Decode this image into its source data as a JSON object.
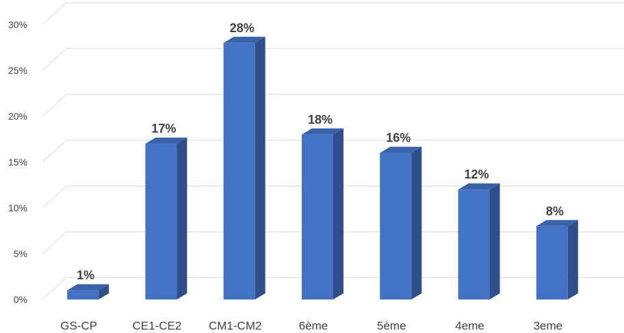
{
  "chart_data": {
    "type": "bar",
    "categories": [
      "GS-CP",
      "CE1-CE2",
      "CM1-CM2",
      "6ème",
      "5ème",
      "4eme",
      "3eme"
    ],
    "values": [
      1,
      17,
      28,
      18,
      16,
      12,
      8
    ],
    "data_labels": [
      "1%",
      "17%",
      "28%",
      "18%",
      "16%",
      "12%",
      "8%"
    ],
    "y_ticks": [
      0,
      5,
      10,
      15,
      20,
      25,
      30
    ],
    "y_tick_labels": [
      "0%",
      "5%",
      "10%",
      "15%",
      "20%",
      "25%",
      "30%"
    ],
    "ylim": [
      0,
      30
    ],
    "grid": true,
    "style": "3d-column",
    "colors": {
      "bar_front": "#4472c4",
      "bar_side": "#2f4f8a",
      "bar_top": "#3a62a8",
      "grid": "#d9d9d9",
      "text": "#404040"
    }
  }
}
